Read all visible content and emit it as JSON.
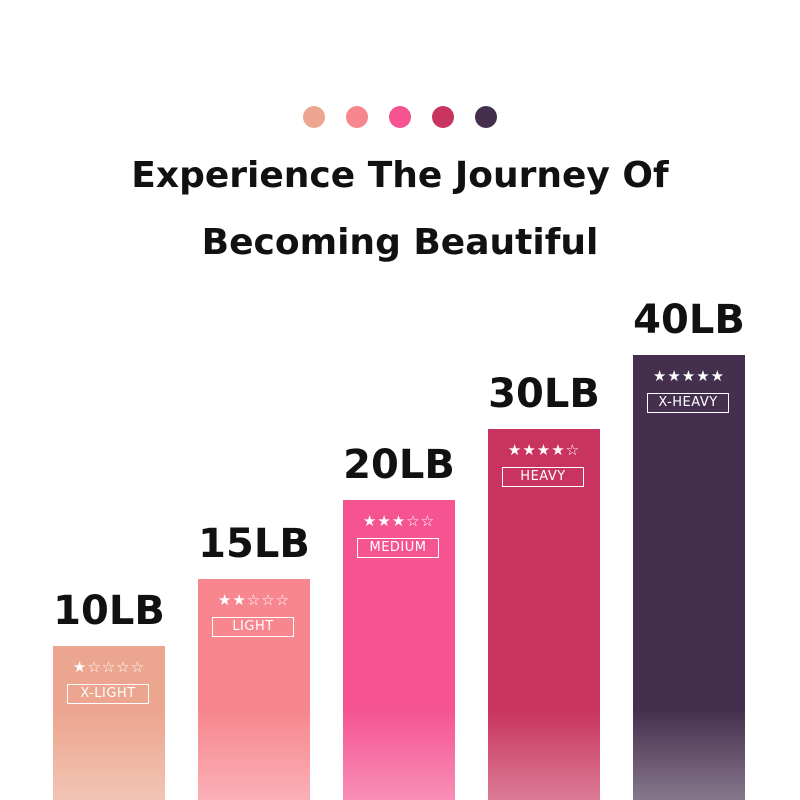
{
  "dots": [
    "#eca58e",
    "#f7868e",
    "#f55491",
    "#c8345f",
    "#452f4e"
  ],
  "title_line1": "Experience The Journey Of",
  "title_line2": "Becoming Beautiful",
  "chart_data": {
    "type": "bar",
    "categories": [
      "X-LIGHT",
      "LIGHT",
      "MEDIUM",
      "HEAVY",
      "X-HEAVY"
    ],
    "values": [
      10,
      15,
      20,
      30,
      40
    ],
    "value_labels": [
      "10LB",
      "15LB",
      "20LB",
      "30LB",
      "40LB"
    ],
    "stars": [
      1,
      2,
      3,
      4,
      5
    ],
    "stars_max": 5,
    "colors": [
      "#eca58e",
      "#f7868e",
      "#f55491",
      "#c8345f",
      "#452f4e"
    ],
    "ylim": [
      0,
      40
    ],
    "grid": false
  }
}
